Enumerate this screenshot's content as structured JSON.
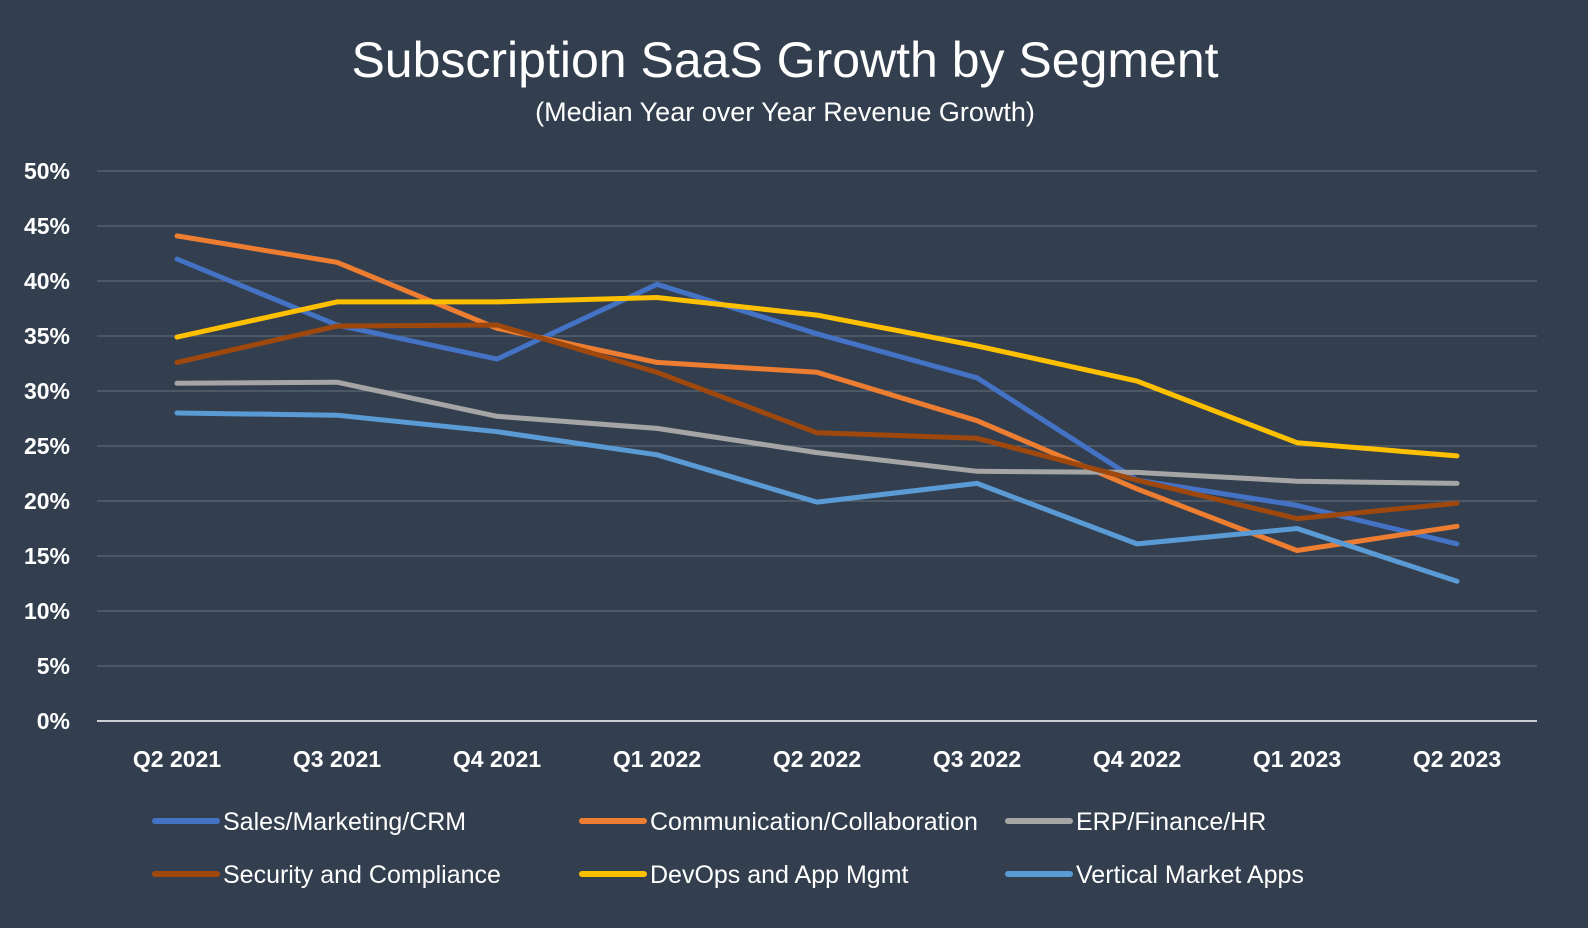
{
  "chart_data": {
    "type": "line",
    "title": "Subscription SaaS Growth by Segment",
    "subtitle": "(Median Year over Year Revenue Growth)",
    "xlabel": "",
    "ylabel": "",
    "ylim": [
      0,
      50
    ],
    "y_tick_values": [
      0,
      5,
      10,
      15,
      20,
      25,
      30,
      35,
      40,
      45,
      50
    ],
    "y_tick_labels": [
      "0%",
      "5%",
      "10%",
      "15%",
      "20%",
      "25%",
      "30%",
      "35%",
      "40%",
      "45%",
      "50%"
    ],
    "grid": true,
    "legend_position": "bottom",
    "categories": [
      "Q2 2021",
      "Q3 2021",
      "Q4 2021",
      "Q1 2022",
      "Q2 2022",
      "Q3 2022",
      "Q4 2022",
      "Q1 2023",
      "Q2 2023"
    ],
    "series": [
      {
        "name": "Sales/Marketing/CRM",
        "color": "#4472c4",
        "values": [
          42.0,
          36.0,
          32.9,
          39.7,
          35.2,
          31.2,
          21.9,
          19.6,
          16.1
        ]
      },
      {
        "name": "Communication/Collaboration",
        "color": "#ed7d31",
        "values": [
          44.1,
          41.7,
          35.7,
          32.6,
          31.7,
          27.3,
          21.1,
          15.5,
          17.7
        ]
      },
      {
        "name": "ERP/Finance/HR",
        "color": "#a5a5a5",
        "values": [
          30.7,
          30.8,
          27.7,
          26.6,
          24.4,
          22.7,
          22.6,
          21.8,
          21.6
        ]
      },
      {
        "name": "Security and Compliance",
        "color": "#9e480e",
        "values": [
          32.6,
          35.9,
          36.0,
          31.7,
          26.2,
          25.7,
          21.9,
          18.4,
          19.8
        ]
      },
      {
        "name": "DevOps and App Mgmt",
        "color": "#ffc000",
        "values": [
          34.9,
          38.1,
          38.1,
          38.5,
          36.9,
          34.1,
          30.9,
          25.3,
          24.1
        ]
      },
      {
        "name": "Vertical Market Apps",
        "color": "#5b9bd5",
        "values": [
          28.0,
          27.8,
          26.3,
          24.2,
          19.9,
          21.6,
          16.1,
          17.5,
          12.7
        ]
      }
    ]
  }
}
